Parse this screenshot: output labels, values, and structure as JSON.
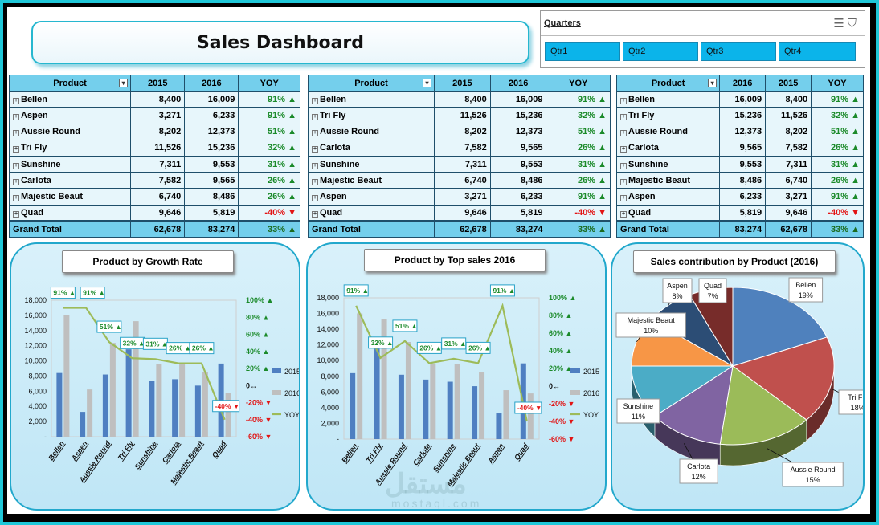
{
  "dashboard": {
    "title": "Sales Dashboard"
  },
  "slicer": {
    "title": "Quarters",
    "items": [
      "Qtr1",
      "Qtr2",
      "Qtr3",
      "Qtr4"
    ]
  },
  "table1": {
    "headers": [
      "Product",
      "2015",
      "2016",
      "YOY"
    ],
    "rows": [
      [
        "Bellen",
        "8,400",
        "16,009",
        "91%",
        "up"
      ],
      [
        "Aspen",
        "3,271",
        "6,233",
        "91%",
        "up"
      ],
      [
        "Aussie Round",
        "8,202",
        "12,373",
        "51%",
        "up"
      ],
      [
        "Tri Fly",
        "11,526",
        "15,236",
        "32%",
        "up"
      ],
      [
        "Sunshine",
        "7,311",
        "9,553",
        "31%",
        "up"
      ],
      [
        "Carlota",
        "7,582",
        "9,565",
        "26%",
        "up"
      ],
      [
        "Majestic Beaut",
        "6,740",
        "8,486",
        "26%",
        "up"
      ],
      [
        "Quad",
        "9,646",
        "5,819",
        "-40%",
        "down"
      ]
    ],
    "total": [
      "Grand Total",
      "62,678",
      "83,274",
      "33%",
      "up"
    ]
  },
  "table2": {
    "headers": [
      "Product",
      "2015",
      "2016",
      "YOY"
    ],
    "rows": [
      [
        "Bellen",
        "8,400",
        "16,009",
        "91%",
        "up"
      ],
      [
        "Tri Fly",
        "11,526",
        "15,236",
        "32%",
        "up"
      ],
      [
        "Aussie Round",
        "8,202",
        "12,373",
        "51%",
        "up"
      ],
      [
        "Carlota",
        "7,582",
        "9,565",
        "26%",
        "up"
      ],
      [
        "Sunshine",
        "7,311",
        "9,553",
        "31%",
        "up"
      ],
      [
        "Majestic Beaut",
        "6,740",
        "8,486",
        "26%",
        "up"
      ],
      [
        "Aspen",
        "3,271",
        "6,233",
        "91%",
        "up"
      ],
      [
        "Quad",
        "9,646",
        "5,819",
        "-40%",
        "down"
      ]
    ],
    "total": [
      "Grand Total",
      "62,678",
      "83,274",
      "33%",
      "up"
    ]
  },
  "table3": {
    "headers": [
      "Product",
      "2016",
      "2015",
      "YOY"
    ],
    "rows": [
      [
        "Bellen",
        "16,009",
        "8,400",
        "91%",
        "up"
      ],
      [
        "Tri Fly",
        "15,236",
        "11,526",
        "32%",
        "up"
      ],
      [
        "Aussie Round",
        "12,373",
        "8,202",
        "51%",
        "up"
      ],
      [
        "Carlota",
        "9,565",
        "7,582",
        "26%",
        "up"
      ],
      [
        "Sunshine",
        "9,553",
        "7,311",
        "31%",
        "up"
      ],
      [
        "Majestic Beaut",
        "8,486",
        "6,740",
        "26%",
        "up"
      ],
      [
        "Aspen",
        "6,233",
        "3,271",
        "91%",
        "up"
      ],
      [
        "Quad",
        "5,819",
        "9,646",
        "-40%",
        "down"
      ]
    ],
    "total": [
      "Grand Total",
      "83,274",
      "62,678",
      "33%",
      "up"
    ]
  },
  "colors": {
    "bar2015": "#4f7fc1",
    "bar2016": "#bfbfbf",
    "yoyLine": "#9dbb59",
    "up": "#1b8a2a",
    "down": "#e21414"
  },
  "chart_data": [
    {
      "type": "bar",
      "title": "Product by Growth Rate",
      "categories": [
        "Bellen",
        "Aspen",
        "Aussie Round",
        "Tri Fly",
        "Sunshine",
        "Carlota",
        "Majestic Beaut",
        "Quad"
      ],
      "series": [
        {
          "name": "2015",
          "values": [
            8400,
            3271,
            8202,
            11526,
            7311,
            7582,
            6740,
            9646
          ]
        },
        {
          "name": "2016",
          "values": [
            16009,
            6233,
            12373,
            15236,
            9553,
            9565,
            8486,
            5819
          ]
        },
        {
          "name": "YOY",
          "type": "line",
          "values": [
            91,
            91,
            51,
            32,
            31,
            26,
            26,
            -40
          ],
          "labels": [
            "91%",
            "91%",
            "51%",
            "32%",
            "31%",
            "26%",
            "26%",
            "-40%"
          ]
        }
      ],
      "ylim": [
        0,
        18000
      ],
      "yticks": [
        "2,000",
        "4,000",
        "6,000",
        "8,000",
        "10,000",
        "12,000",
        "14,000",
        "16,000",
        "18,000"
      ],
      "y2lim": [
        -60,
        100
      ],
      "y2ticks": [
        "100%",
        "80%",
        "60%",
        "40%",
        "20%",
        "0",
        "-20%",
        "-40%",
        "-60%"
      ],
      "legend": "right"
    },
    {
      "type": "bar",
      "title": "Product by Top sales 2016",
      "categories": [
        "Bellen",
        "Tri Fly",
        "Aussie Round",
        "Carlota",
        "Sunshine",
        "Majestic Beaut",
        "Aspen",
        "Quad"
      ],
      "series": [
        {
          "name": "2015",
          "values": [
            8400,
            11526,
            8202,
            7582,
            7311,
            6740,
            3271,
            9646
          ]
        },
        {
          "name": "2016",
          "values": [
            16009,
            15236,
            12373,
            9565,
            9553,
            8486,
            6233,
            5819
          ]
        },
        {
          "name": "YOY",
          "type": "line",
          "values": [
            91,
            32,
            51,
            26,
            31,
            26,
            91,
            -40
          ],
          "labels": [
            "91%",
            "32%",
            "51%",
            "26%",
            "31%",
            "26%",
            "91%",
            "-40%"
          ]
        }
      ],
      "ylim": [
        0,
        18000
      ],
      "yticks": [
        "2,000",
        "4,000",
        "6,000",
        "8,000",
        "10,000",
        "12,000",
        "14,000",
        "16,000",
        "18,000"
      ],
      "y2lim": [
        -60,
        100
      ],
      "y2ticks": [
        "100%",
        "80%",
        "60%",
        "40%",
        "20%",
        "0",
        "-20%",
        "-40%",
        "-60%"
      ],
      "legend": "right"
    },
    {
      "type": "pie",
      "title": "Sales contribution by Product (2016)",
      "categories": [
        "Bellen",
        "Tri Fly",
        "Aussie Round",
        "Carlota",
        "Sunshine",
        "Majestic Beaut",
        "Aspen",
        "Quad"
      ],
      "values": [
        19,
        18,
        15,
        12,
        11,
        10,
        8,
        7
      ],
      "labels": [
        "19%",
        "18%",
        "15%",
        "12%",
        "11%",
        "10%",
        "8%",
        "7%"
      ],
      "colors": [
        "#4f81bd",
        "#c0504d",
        "#9bbb59",
        "#8064a2",
        "#4bacc6",
        "#f79646",
        "#2c4d75",
        "#772c2a"
      ]
    }
  ],
  "watermark": {
    "text": "مستقل",
    "sub": "mostaql.com"
  }
}
